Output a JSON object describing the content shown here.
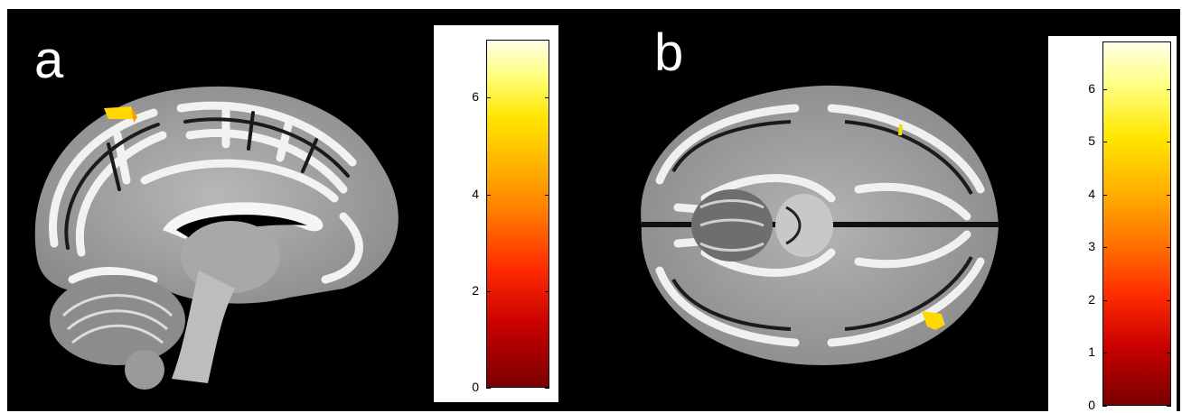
{
  "panels": [
    {
      "letter": "a",
      "view": "sagittal",
      "colorbar": {
        "ticks": [
          "0",
          "2",
          "4",
          "6"
        ],
        "min": 0,
        "max": 7.2
      }
    },
    {
      "letter": "b",
      "view": "axial",
      "colorbar": {
        "ticks": [
          "0",
          "1",
          "2",
          "3",
          "4",
          "5",
          "6"
        ],
        "min": 0,
        "max": 6.9
      }
    }
  ],
  "colors": {
    "background": "#000000",
    "cmap_low": "#7a0000",
    "cmap_mid": "#ff6600",
    "cmap_high": "#ffffe0",
    "blob": "#ffd800"
  }
}
